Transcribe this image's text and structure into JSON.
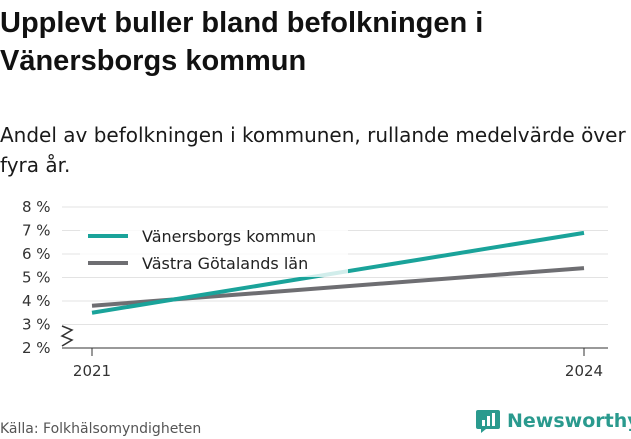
{
  "title": "Upplevt buller bland befolkningen i Vänersborgs kommun",
  "subtitle": "Andel av befolkningen i kommunen, rullande medelvärde över fyra år.",
  "source": "Källa: Folkhälsomyndigheten",
  "brand": "Newsworthy",
  "colors": {
    "kommun": "#1aa39a",
    "lan": "#6e6e72",
    "brand": "#2a9a8e"
  },
  "chart_data": {
    "type": "line",
    "x": [
      "2021",
      "2024"
    ],
    "y_ticks": [
      "2 %",
      "3 %",
      "4 %",
      "5 %",
      "6 %",
      "7 %",
      "8 %"
    ],
    "ylim": [
      2,
      8
    ],
    "axis_break": true,
    "grid": true,
    "legend_position": "top-left",
    "series": [
      {
        "name": "Vänersborgs kommun",
        "values": [
          3.5,
          6.9
        ]
      },
      {
        "name": "Västra Götalands län",
        "values": [
          3.8,
          5.4
        ]
      }
    ]
  }
}
